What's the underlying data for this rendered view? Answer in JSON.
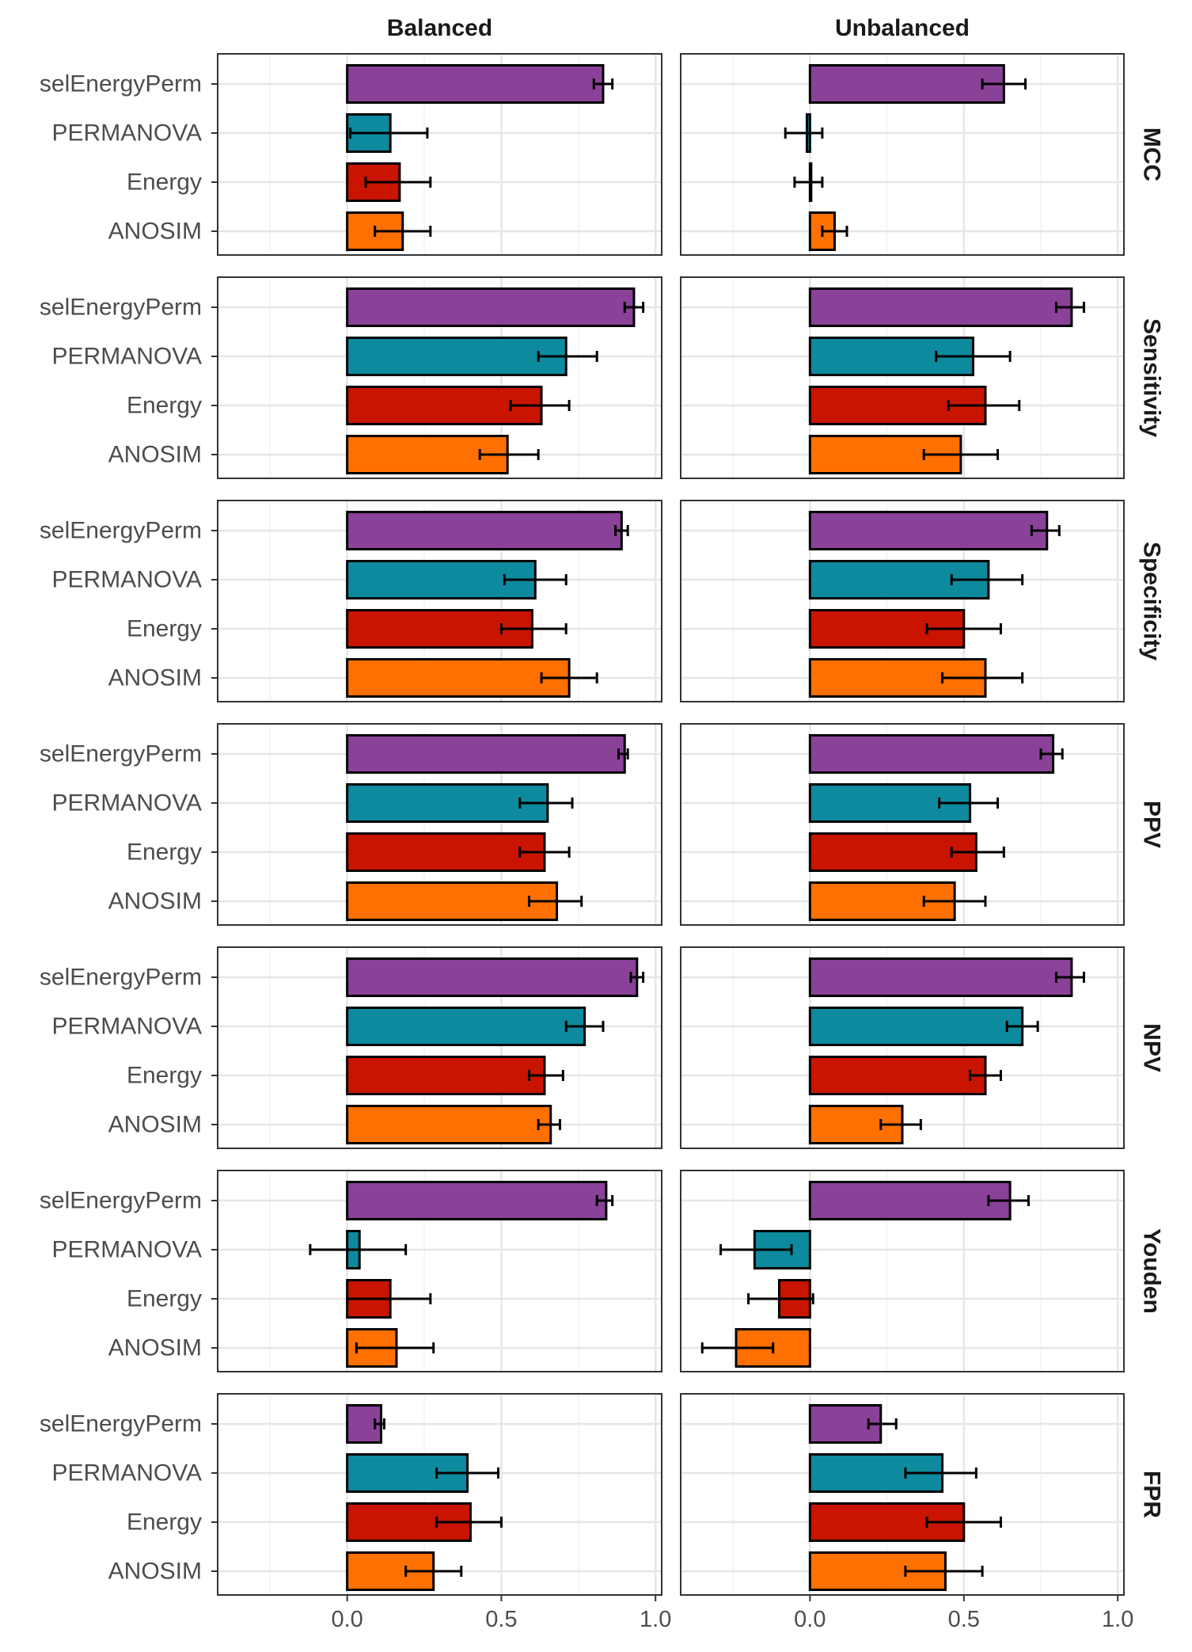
{
  "chart_data": {
    "type": "bar",
    "orientation": "horizontal",
    "grid": true,
    "legend": "none",
    "xlim": [
      -0.42,
      1.02
    ],
    "x_ticks": [
      "0.0",
      "0.5",
      "1.0"
    ],
    "columns": [
      "Balanced",
      "Unbalanced"
    ],
    "rows": [
      "MCC",
      "Sensitivity",
      "Specificity",
      "PPV",
      "NPV",
      "Youden",
      "FPR"
    ],
    "categories": [
      "selEnergyPerm",
      "PERMANOVA",
      "Energy",
      "ANOSIM"
    ],
    "colors": {
      "selEnergyPerm": "#8a4198",
      "PERMANOVA": "#0e8a9e",
      "Energy": "#c81400",
      "ANOSIM": "#ff7000"
    },
    "panels": [
      {
        "row": "MCC",
        "column": "Balanced",
        "values": [
          0.83,
          0.14,
          0.17,
          0.18
        ],
        "error_low": [
          0.8,
          0.01,
          0.06,
          0.09
        ],
        "error_high": [
          0.86,
          0.26,
          0.27,
          0.27
        ]
      },
      {
        "row": "MCC",
        "column": "Unbalanced",
        "values": [
          0.63,
          -0.01,
          0.0,
          0.08
        ],
        "error_low": [
          0.56,
          -0.08,
          -0.05,
          0.04
        ],
        "error_high": [
          0.7,
          0.04,
          0.04,
          0.12
        ]
      },
      {
        "row": "Sensitivity",
        "column": "Balanced",
        "values": [
          0.93,
          0.71,
          0.63,
          0.52
        ],
        "error_low": [
          0.9,
          0.62,
          0.53,
          0.43
        ],
        "error_high": [
          0.96,
          0.81,
          0.72,
          0.62
        ]
      },
      {
        "row": "Sensitivity",
        "column": "Unbalanced",
        "values": [
          0.85,
          0.53,
          0.57,
          0.49
        ],
        "error_low": [
          0.8,
          0.41,
          0.45,
          0.37
        ],
        "error_high": [
          0.89,
          0.65,
          0.68,
          0.61
        ]
      },
      {
        "row": "Specificity",
        "column": "Balanced",
        "values": [
          0.89,
          0.61,
          0.6,
          0.72
        ],
        "error_low": [
          0.87,
          0.51,
          0.5,
          0.63
        ],
        "error_high": [
          0.91,
          0.71,
          0.71,
          0.81
        ]
      },
      {
        "row": "Specificity",
        "column": "Unbalanced",
        "values": [
          0.77,
          0.58,
          0.5,
          0.57
        ],
        "error_low": [
          0.72,
          0.46,
          0.38,
          0.43
        ],
        "error_high": [
          0.81,
          0.69,
          0.62,
          0.69
        ]
      },
      {
        "row": "PPV",
        "column": "Balanced",
        "values": [
          0.9,
          0.65,
          0.64,
          0.68
        ],
        "error_low": [
          0.88,
          0.56,
          0.56,
          0.59
        ],
        "error_high": [
          0.91,
          0.73,
          0.72,
          0.76
        ]
      },
      {
        "row": "PPV",
        "column": "Unbalanced",
        "values": [
          0.79,
          0.52,
          0.54,
          0.47
        ],
        "error_low": [
          0.75,
          0.42,
          0.46,
          0.37
        ],
        "error_high": [
          0.82,
          0.61,
          0.63,
          0.57
        ]
      },
      {
        "row": "NPV",
        "column": "Balanced",
        "values": [
          0.94,
          0.77,
          0.64,
          0.66
        ],
        "error_low": [
          0.92,
          0.71,
          0.59,
          0.62
        ],
        "error_high": [
          0.96,
          0.83,
          0.7,
          0.69
        ]
      },
      {
        "row": "NPV",
        "column": "Unbalanced",
        "values": [
          0.85,
          0.69,
          0.57,
          0.3
        ],
        "error_low": [
          0.8,
          0.64,
          0.52,
          0.23
        ],
        "error_high": [
          0.89,
          0.74,
          0.62,
          0.36
        ]
      },
      {
        "row": "Youden",
        "column": "Balanced",
        "values": [
          0.84,
          0.04,
          0.14,
          0.16
        ],
        "error_low": [
          0.81,
          -0.12,
          0.0,
          0.03
        ],
        "error_high": [
          0.86,
          0.19,
          0.27,
          0.28
        ]
      },
      {
        "row": "Youden",
        "column": "Unbalanced",
        "values": [
          0.65,
          -0.18,
          -0.1,
          -0.24
        ],
        "error_low": [
          0.58,
          -0.29,
          -0.2,
          -0.35
        ],
        "error_high": [
          0.71,
          -0.06,
          0.01,
          -0.12
        ]
      },
      {
        "row": "FPR",
        "column": "Balanced",
        "values": [
          0.11,
          0.39,
          0.4,
          0.28
        ],
        "error_low": [
          0.09,
          0.29,
          0.29,
          0.19
        ],
        "error_high": [
          0.12,
          0.49,
          0.5,
          0.37
        ]
      },
      {
        "row": "FPR",
        "column": "Unbalanced",
        "values": [
          0.23,
          0.43,
          0.5,
          0.44
        ],
        "error_low": [
          0.19,
          0.31,
          0.38,
          0.31
        ],
        "error_high": [
          0.28,
          0.54,
          0.62,
          0.56
        ]
      }
    ]
  }
}
